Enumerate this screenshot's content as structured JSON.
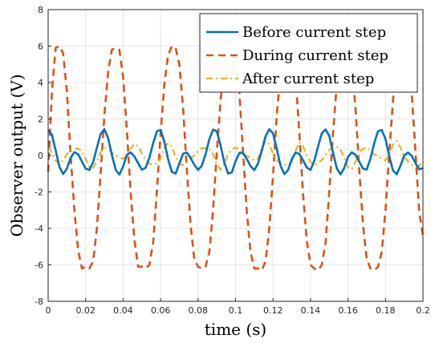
{
  "chart_data": {
    "type": "line",
    "title": "",
    "xlabel": "time (s)",
    "ylabel": "Observer output (V)",
    "xlim": [
      0,
      0.2
    ],
    "ylim": [
      -8,
      8
    ],
    "x_ticks": [
      "0",
      "0.02",
      "0.04",
      "0.06",
      "0.08",
      "0.1",
      "0.12",
      "0.14",
      "0.16",
      "0.18",
      "0.2"
    ],
    "y_ticks": [
      "-8",
      "-6",
      "-4",
      "-2",
      "0",
      "2",
      "4",
      "6",
      "8"
    ],
    "grid": true,
    "legend_position": "top-right",
    "x": [
      0,
      0.002,
      0.004,
      0.006,
      0.008,
      0.01,
      0.012,
      0.014,
      0.016,
      0.018,
      0.02,
      0.022,
      0.024,
      0.026,
      0.028,
      0.03,
      0.032,
      0.034,
      0.036,
      0.038,
      0.04,
      0.042,
      0.044,
      0.046,
      0.048,
      0.05,
      0.052,
      0.054,
      0.056,
      0.058,
      0.06,
      0.062,
      0.064,
      0.066,
      0.068,
      0.07,
      0.072,
      0.074,
      0.076,
      0.078,
      0.08,
      0.082,
      0.084,
      0.086,
      0.088,
      0.09,
      0.092,
      0.094,
      0.096,
      0.098,
      0.1,
      0.102,
      0.104,
      0.106,
      0.108,
      0.11,
      0.112,
      0.114,
      0.116,
      0.118,
      0.12,
      0.122,
      0.124,
      0.126,
      0.128,
      0.13,
      0.132,
      0.134,
      0.136,
      0.138,
      0.14,
      0.142,
      0.144,
      0.146,
      0.148,
      0.15,
      0.152,
      0.154,
      0.156,
      0.158,
      0.16,
      0.162,
      0.164,
      0.166,
      0.168,
      0.17,
      0.172,
      0.174,
      0.176,
      0.178,
      0.18,
      0.182,
      0.184,
      0.186,
      0.188,
      0.19,
      0.192,
      0.194,
      0.196,
      0.198,
      0.2
    ],
    "series": [
      {
        "name": "Before current step",
        "color": "#0072bd",
        "style": "solid",
        "values": [
          1.38,
          1.14,
          0.28,
          -0.62,
          -1.02,
          -0.72,
          -0.13,
          0.18,
          0.07,
          -0.33,
          -0.72,
          -0.8,
          -0.36,
          0.42,
          1.18,
          1.44,
          0.95,
          0.03,
          -0.78,
          -1.05,
          -0.6,
          0.03,
          0.17,
          -0.05,
          -0.42,
          -0.78,
          -0.68,
          -0.13,
          0.67,
          1.32,
          1.4,
          0.75,
          -0.2,
          -0.9,
          -0.99,
          -0.45,
          0.1,
          0.16,
          -0.13,
          -0.52,
          -0.79,
          -0.56,
          0.07,
          0.89,
          1.42,
          1.32,
          0.55,
          -0.38,
          -0.99,
          -0.93,
          -0.31,
          0.14,
          0.13,
          -0.19,
          -0.59,
          -0.8,
          -0.44,
          0.27,
          1.05,
          1.44,
          1.21,
          0.36,
          -0.56,
          -1.02,
          -0.8,
          -0.2,
          0.16,
          0.09,
          -0.26,
          -0.66,
          -0.79,
          -0.3,
          0.49,
          1.21,
          1.43,
          1.08,
          0.15,
          -0.7,
          -1.04,
          -0.68,
          -0.08,
          0.17,
          0.04,
          -0.34,
          -0.72,
          -0.77,
          -0.16,
          0.68,
          1.33,
          1.4,
          0.9,
          -0.04,
          -0.82,
          -1.03,
          -0.56,
          0.0,
          0.16,
          -0.02,
          -0.42,
          -0.76,
          -0.7
        ]
      },
      {
        "name": "During current step",
        "color": "#d95319",
        "style": "dashed",
        "values": [
          -0.9,
          3.5,
          5.9,
          6.0,
          5.6,
          3.5,
          0.0,
          -3.0,
          -5.2,
          -6.2,
          -6.1,
          -6.2,
          -5.8,
          -4.0,
          -1.0,
          2.2,
          4.6,
          5.8,
          5.9,
          5.8,
          4.3,
          1.4,
          -2.0,
          -4.6,
          -6.1,
          -6.1,
          -6.2,
          -6.0,
          -4.8,
          -2.0,
          1.2,
          3.9,
          5.5,
          6.0,
          5.9,
          5.0,
          2.6,
          -0.8,
          -3.8,
          -5.7,
          -6.1,
          -6.2,
          -6.1,
          -5.3,
          -3.0,
          0.2,
          3.0,
          5.1,
          5.9,
          5.9,
          5.5,
          3.5,
          0.2,
          -3.1,
          -5.3,
          -6.2,
          -6.2,
          -6.3,
          -5.8,
          -4.0,
          -1.1,
          2.2,
          4.6,
          5.8,
          5.9,
          5.8,
          4.3,
          1.3,
          -2.1,
          -4.7,
          -6.0,
          -6.2,
          -6.3,
          -6.0,
          -4.8,
          -2.0,
          1.2,
          3.9,
          5.5,
          6.0,
          5.9,
          5.0,
          2.6,
          -0.8,
          -3.8,
          -5.7,
          -6.2,
          -6.3,
          -6.1,
          -5.3,
          -3.0,
          0.1,
          3.0,
          5.1,
          5.9,
          5.9,
          5.5,
          3.4,
          0.2,
          -3.1,
          -4.4
        ]
      },
      {
        "name": "After current step",
        "color": "#edb120",
        "style": "dashdot",
        "values": [
          0.46,
          0.16,
          -0.28,
          -0.48,
          -0.27,
          0.07,
          0.29,
          0.36,
          0.38,
          0.24,
          -0.17,
          -0.64,
          -0.69,
          -0.32,
          0.18,
          0.42,
          0.36,
          0.17,
          -0.02,
          -0.12,
          -0.18,
          -0.04,
          0.37,
          0.64,
          0.51,
          0.12,
          -0.24,
          -0.45,
          -0.5,
          -0.45,
          -0.17,
          0.42,
          0.68,
          0.49,
          -0.07,
          -0.46,
          -0.52,
          -0.38,
          -0.18,
          0.02,
          0.24,
          0.4,
          0.41,
          0.37,
          0.08,
          -0.5,
          -0.78,
          -0.44,
          0.06,
          0.34,
          0.43,
          0.35,
          0.13,
          -0.03,
          -0.13,
          -0.27,
          -0.17,
          0.42,
          0.8,
          0.61,
          0.09,
          -0.24,
          -0.47,
          -0.52,
          -0.49,
          -0.34,
          0.25,
          0.72,
          0.52,
          0.0,
          -0.36,
          -0.52,
          -0.45,
          -0.24,
          0.02,
          0.28,
          0.48,
          0.46,
          0.33,
          -0.11,
          -0.66,
          -0.75,
          -0.34,
          0.15,
          0.38,
          0.41,
          0.28,
          0.06,
          -0.05,
          -0.17,
          -0.27,
          0.02,
          0.6,
          0.8,
          0.43,
          -0.06,
          -0.32,
          -0.52,
          -0.61,
          -0.57,
          -0.31
        ]
      }
    ]
  }
}
